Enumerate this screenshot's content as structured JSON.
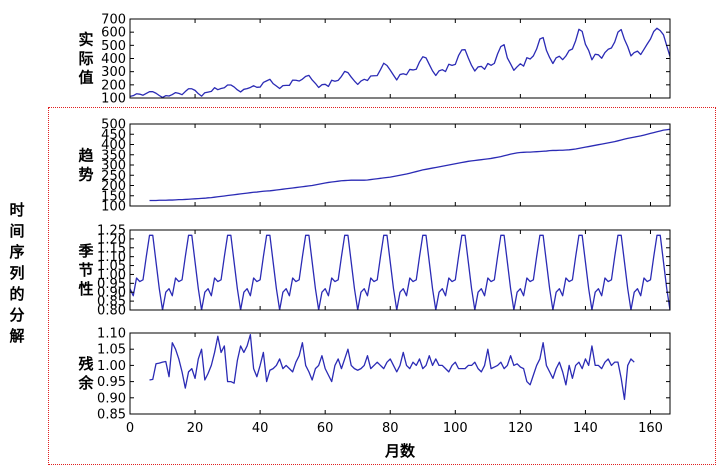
{
  "side_label": "时间序列的分解",
  "colors": {
    "line": "#2b2bb5",
    "frame": "#e02020",
    "axis": "#000000"
  },
  "chart_data": [
    {
      "type": "line",
      "name": "observed",
      "ylabel": "实际值",
      "ylim": [
        100,
        700
      ],
      "yticks": [
        100,
        200,
        300,
        400,
        500,
        600,
        700
      ],
      "xlim": [
        0,
        166
      ],
      "x_start": 0,
      "values": [
        112,
        118,
        132,
        129,
        121,
        135,
        148,
        148,
        136,
        119,
        104,
        118,
        115,
        126,
        141,
        135,
        125,
        149,
        170,
        170,
        158,
        133,
        114,
        140,
        145,
        150,
        178,
        163,
        172,
        178,
        199,
        199,
        184,
        162,
        146,
        166,
        171,
        180,
        193,
        181,
        183,
        218,
        230,
        242,
        209,
        191,
        172,
        194,
        196,
        196,
        236,
        235,
        229,
        243,
        264,
        272,
        237,
        211,
        180,
        201,
        204,
        188,
        235,
        227,
        234,
        264,
        302,
        293,
        259,
        229,
        203,
        229,
        242,
        233,
        267,
        269,
        270,
        315,
        364,
        347,
        312,
        274,
        237,
        278,
        284,
        277,
        317,
        313,
        318,
        374,
        413,
        405,
        355,
        306,
        271,
        306,
        315,
        301,
        356,
        348,
        355,
        422,
        465,
        467,
        404,
        347,
        305,
        336,
        340,
        318,
        362,
        348,
        363,
        435,
        491,
        505,
        404,
        359,
        310,
        337,
        360,
        342,
        406,
        396,
        420,
        472,
        548,
        559,
        463,
        407,
        362,
        405,
        417,
        391,
        419,
        461,
        472,
        535,
        622,
        606,
        508,
        461,
        390,
        432,
        428,
        402,
        445,
        470,
        480,
        525,
        600,
        620,
        545,
        490,
        420,
        445,
        456,
        430,
        470,
        510,
        548,
        605,
        630,
        612,
        580,
        496,
        416,
        446
      ]
    },
    {
      "type": "line",
      "name": "trend",
      "ylabel": "趋势",
      "ylim": [
        100,
        500
      ],
      "yticks": [
        100,
        150,
        200,
        250,
        300,
        350,
        400,
        450,
        500
      ],
      "xlim": [
        0,
        166
      ],
      "x_start": 6,
      "values": [
        127,
        127,
        127,
        128,
        128,
        128,
        129,
        129,
        130,
        131,
        131,
        132,
        133,
        134,
        135,
        136,
        137,
        138,
        140,
        141,
        143,
        145,
        147,
        149,
        151,
        153,
        155,
        157,
        159,
        161,
        163,
        165,
        167,
        168,
        170,
        172,
        173,
        174,
        176,
        178,
        180,
        182,
        184,
        186,
        188,
        190,
        192,
        194,
        196,
        198,
        200,
        203,
        206,
        209,
        212,
        215,
        217,
        219,
        221,
        223,
        224,
        225,
        226,
        226,
        226,
        226,
        226,
        227,
        229,
        231,
        233,
        235,
        237,
        239,
        241,
        244,
        247,
        250,
        253,
        256,
        260,
        264,
        268,
        272,
        276,
        279,
        282,
        285,
        288,
        291,
        294,
        297,
        300,
        303,
        306,
        309,
        312,
        315,
        318,
        320,
        322,
        324,
        326,
        328,
        330,
        332,
        335,
        338,
        341,
        345,
        349,
        353,
        356,
        359,
        361,
        362,
        363,
        363,
        364,
        365,
        366,
        367,
        368,
        370,
        371,
        371,
        372,
        372,
        373,
        374,
        376,
        378,
        381,
        384,
        387,
        390,
        393,
        396,
        399,
        402,
        405,
        408,
        411,
        414,
        418,
        422,
        426,
        430,
        433,
        436,
        439,
        442,
        446,
        450,
        454,
        458,
        462,
        466,
        470,
        472,
        474,
        475
      ]
    },
    {
      "type": "line",
      "name": "seasonal",
      "ylabel": "季节性",
      "ylim": [
        0.8,
        1.25
      ],
      "yticks": [
        0.8,
        0.85,
        0.9,
        0.95,
        1.0,
        1.05,
        1.1,
        1.15,
        1.2,
        1.25
      ],
      "ytick_labels": [
        "0.80",
        "0.85",
        "0.90",
        "0.95",
        "1.00",
        "1.05",
        "1.10",
        "1.15",
        "1.20",
        "1.25"
      ],
      "xlim": [
        0,
        166
      ],
      "x_start": 0,
      "period": [
        0.92,
        0.88,
        0.98,
        0.96,
        0.97,
        1.1,
        1.22,
        1.22,
        1.07,
        0.92,
        0.8,
        0.9
      ],
      "cycles": 14
    },
    {
      "type": "line",
      "name": "residual",
      "ylabel": "残余",
      "ylim": [
        0.85,
        1.1
      ],
      "yticks": [
        0.85,
        0.9,
        0.95,
        1.0,
        1.05,
        1.1
      ],
      "ytick_labels": [
        "0.85",
        "0.90",
        "0.95",
        "1.00",
        "1.05",
        "1.10"
      ],
      "xlim": [
        0,
        166
      ],
      "x_start": 6,
      "xticks": [
        0,
        20,
        40,
        60,
        80,
        100,
        120,
        140,
        160
      ],
      "xlabel": "月数",
      "values": [
        0.955,
        0.957,
        1.005,
        1.007,
        1.01,
        1.012,
        0.965,
        1.07,
        1.05,
        1.02,
        0.98,
        0.93,
        0.98,
        0.99,
        0.96,
        1.02,
        1.05,
        0.955,
        0.975,
        1.0,
        1.04,
        1.09,
        1.04,
        1.06,
        0.95,
        0.95,
        0.945,
        1.015,
        1.06,
        1.04,
        1.06,
        1.095,
        0.99,
        0.965,
        1.0,
        1.04,
        0.95,
        0.985,
        0.99,
        1.0,
        1.02,
        0.99,
        1.0,
        0.99,
        0.98,
        1.01,
        1.03,
        1.07,
        1.0,
        0.98,
        0.955,
        0.99,
        1.0,
        1.03,
        0.99,
        0.97,
        0.95,
        1.0,
        1.02,
        0.99,
        1.02,
        1.05,
        1.0,
        0.99,
        0.985,
        0.99,
        1.0,
        1.03,
        0.99,
        1.0,
        1.01,
        1.0,
        0.99,
        1.01,
        1.02,
        1.0,
        0.98,
        1.0,
        1.04,
        1.0,
        0.99,
        1.01,
        1.0,
        1.02,
        0.99,
        1.0,
        1.03,
        1.0,
        1.02,
        1.0,
        1.0,
        0.99,
        0.98,
        1.0,
        1.01,
        0.99,
        0.99,
        0.99,
        1.0,
        1.0,
        1.01,
        0.99,
        0.98,
        1.0,
        1.05,
        0.99,
        0.995,
        1.0,
        1.01,
        0.99,
        1.0,
        1.03,
        1.0,
        1.005,
        0.995,
        0.99,
        0.95,
        0.94,
        0.97,
        1.0,
        1.02,
        1.07,
        1.0,
        0.98,
        0.96,
        0.99,
        1.01,
        0.98,
        0.94,
        1.0,
        0.96,
        1.0,
        1.01,
        0.99,
        1.02,
        1.0,
        1.06,
        1.0,
        1.0,
        0.99,
        1.01,
        1.02,
        1.0,
        1.01,
        1.01,
        0.96,
        0.895,
        1.0,
        1.02,
        1.01
      ]
    }
  ]
}
